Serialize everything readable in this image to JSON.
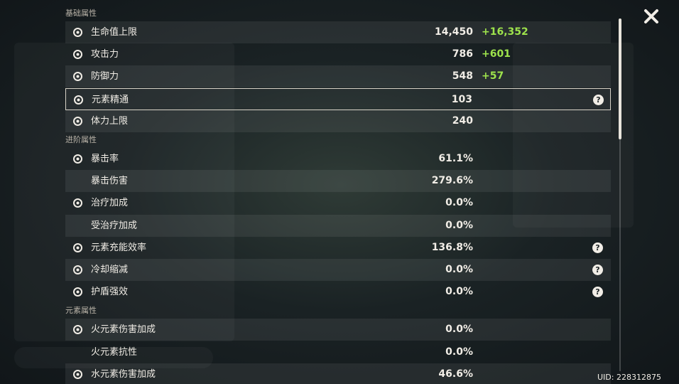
{
  "sections": [
    {
      "title": "基础属性",
      "rows": [
        {
          "label": "生命值上限",
          "value": "14,450",
          "bonus": "+16,352",
          "icon": true
        },
        {
          "label": "攻击力",
          "value": "786",
          "bonus": "+601",
          "icon": true
        },
        {
          "label": "防御力",
          "value": "548",
          "bonus": "+57",
          "icon": true
        },
        {
          "label": "元素精通",
          "value": "103",
          "icon": true,
          "help": true,
          "selected": true
        },
        {
          "label": "体力上限",
          "value": "240",
          "icon": true
        }
      ]
    },
    {
      "title": "进阶属性",
      "rows": [
        {
          "label": "暴击率",
          "value": "61.1%",
          "icon": true
        },
        {
          "label": "暴击伤害",
          "value": "279.6%"
        },
        {
          "label": "治疗加成",
          "value": "0.0%",
          "icon": true
        },
        {
          "label": "受治疗加成",
          "value": "0.0%"
        },
        {
          "label": "元素充能效率",
          "value": "136.8%",
          "icon": true,
          "help": true
        },
        {
          "label": "冷却缩减",
          "value": "0.0%",
          "icon": true,
          "help": true
        },
        {
          "label": "护盾强效",
          "value": "0.0%",
          "icon": true,
          "help": true
        }
      ]
    },
    {
      "title": "元素属性",
      "rows": [
        {
          "label": "火元素伤害加成",
          "value": "0.0%",
          "icon": true
        },
        {
          "label": "火元素抗性",
          "value": "0.0%"
        },
        {
          "label": "水元素伤害加成",
          "value": "46.6%",
          "icon": true
        }
      ]
    }
  ],
  "uid": "UID: 228312875"
}
